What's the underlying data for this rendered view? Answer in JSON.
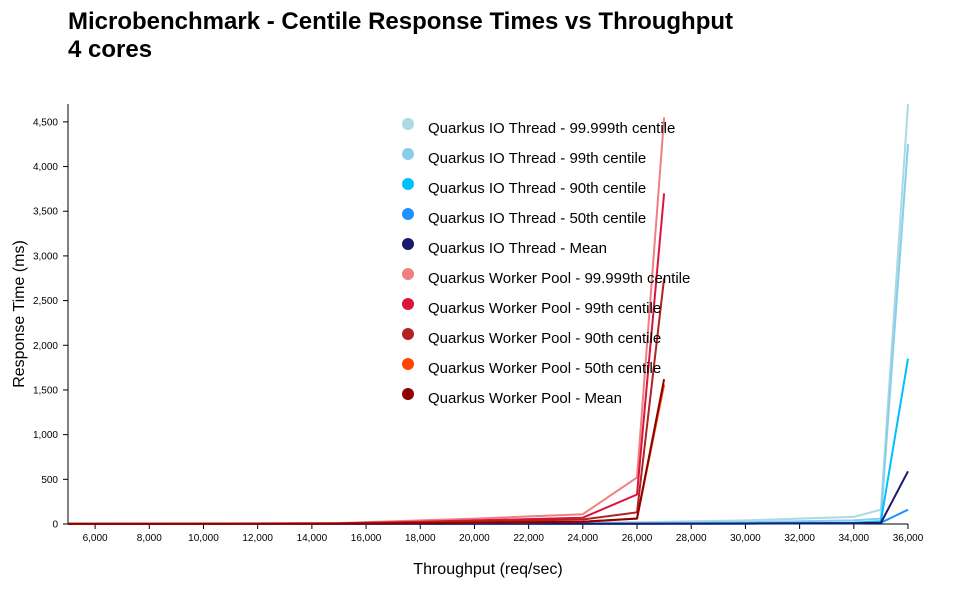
{
  "chart_data": {
    "type": "line",
    "title": "Microbenchmark - Centile Response Times vs Throughput",
    "subtitle": "4 cores",
    "xlabel": "Throughput (req/sec)",
    "ylabel": "Response Time (ms)",
    "xlim": [
      5000,
      36000
    ],
    "ylim": [
      0,
      4700
    ],
    "x_ticks": [
      6000,
      8000,
      10000,
      12000,
      14000,
      16000,
      18000,
      20000,
      22000,
      24000,
      26000,
      28000,
      30000,
      32000,
      34000,
      36000
    ],
    "x_tick_labels": [
      "6,000",
      "8,000",
      "10,000",
      "12,000",
      "14,000",
      "16,000",
      "18,000",
      "20,000",
      "22,000",
      "24,000",
      "26,000",
      "28,000",
      "30,000",
      "32,000",
      "34,000",
      "36,000"
    ],
    "y_ticks": [
      0,
      500,
      1000,
      1500,
      2000,
      2500,
      3000,
      3500,
      4000,
      4500
    ],
    "y_tick_labels": [
      "0",
      "500",
      "1,000",
      "1,500",
      "2,000",
      "2,500",
      "3,000",
      "3,500",
      "4,000",
      "4,500"
    ],
    "legend_position": "top-center",
    "series": [
      {
        "name": "Quarkus IO Thread - 99.999th centile",
        "color": "#add8e6",
        "x": [
          5000,
          15000,
          20000,
          26000,
          30000,
          32000,
          34000,
          35000,
          36000
        ],
        "y": [
          2,
          5,
          10,
          20,
          40,
          60,
          80,
          160,
          4700
        ]
      },
      {
        "name": "Quarkus IO Thread - 99th centile",
        "color": "#87ceeb",
        "x": [
          5000,
          15000,
          20000,
          26000,
          30000,
          32000,
          34000,
          35000,
          36000
        ],
        "y": [
          1,
          3,
          6,
          12,
          20,
          30,
          40,
          60,
          4250
        ]
      },
      {
        "name": "Quarkus IO Thread - 90th centile",
        "color": "#00bfff",
        "x": [
          5000,
          15000,
          20000,
          26000,
          30000,
          34000,
          35000,
          36000
        ],
        "y": [
          1,
          2,
          3,
          5,
          10,
          15,
          30,
          1850
        ]
      },
      {
        "name": "Quarkus IO Thread - 50th centile",
        "color": "#1e90ff",
        "x": [
          5000,
          15000,
          20000,
          26000,
          30000,
          34000,
          35000,
          36000
        ],
        "y": [
          1,
          1,
          2,
          3,
          5,
          8,
          15,
          160
        ]
      },
      {
        "name": "Quarkus IO Thread - Mean",
        "color": "#191970",
        "x": [
          5000,
          15000,
          20000,
          26000,
          30000,
          34000,
          35000,
          36000
        ],
        "y": [
          1,
          1,
          2,
          3,
          5,
          8,
          12,
          590
        ]
      },
      {
        "name": "Quarkus Worker Pool - 99.999th centile",
        "color": "#f08080",
        "x": [
          5000,
          15000,
          18000,
          20000,
          24000,
          26000,
          27000
        ],
        "y": [
          2,
          10,
          40,
          60,
          110,
          520,
          4550
        ]
      },
      {
        "name": "Quarkus Worker Pool - 99th centile",
        "color": "#dc143c",
        "x": [
          5000,
          15000,
          18000,
          20000,
          24000,
          26000,
          27000
        ],
        "y": [
          1,
          8,
          25,
          40,
          70,
          330,
          3700
        ]
      },
      {
        "name": "Quarkus Worker Pool - 90th centile",
        "color": "#b22222",
        "x": [
          5000,
          15000,
          18000,
          20000,
          24000,
          26000,
          27000
        ],
        "y": [
          1,
          6,
          18,
          30,
          50,
          130,
          2750
        ]
      },
      {
        "name": "Quarkus Worker Pool - 50th centile",
        "color": "#ff4500",
        "x": [
          5000,
          15000,
          18000,
          20000,
          24000,
          26000,
          27000
        ],
        "y": [
          1,
          4,
          10,
          15,
          25,
          60,
          1560
        ]
      },
      {
        "name": "Quarkus Worker Pool - Mean",
        "color": "#8b0000",
        "x": [
          5000,
          15000,
          18000,
          20000,
          24000,
          26000,
          27000
        ],
        "y": [
          1,
          4,
          10,
          15,
          25,
          60,
          1620
        ]
      }
    ]
  }
}
